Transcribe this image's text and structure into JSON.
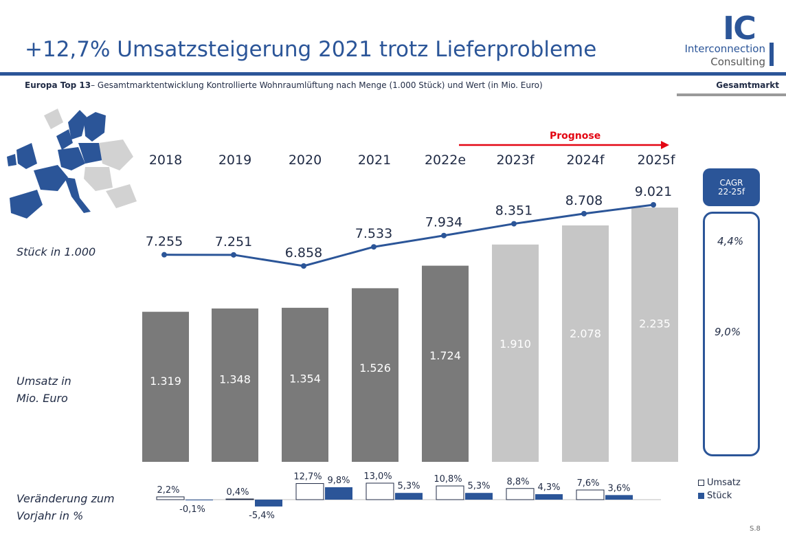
{
  "header": {
    "title": "+12,7% Umsatzsteigerung 2021 trotz Lieferprobleme",
    "subtitle_bold": "Europa Top 13",
    "subtitle_rest": "– Gesamtmarktentwicklung Kontrollierte Wohnraumlüftung nach Menge (1.000 Stück) und Wert (in Mio. Euro)",
    "section": "Gesamtmarkt"
  },
  "logo": {
    "mark": "IC",
    "line1": "Interconnection",
    "line2": "Consulting"
  },
  "row_labels": {
    "stueck": "Stück in 1.000",
    "umsatz_1": "Umsatz in",
    "umsatz_2": "Mio. Euro",
    "change_1": "Veränderung zum",
    "change_2": "Vorjahr in %"
  },
  "prognose_label": "Prognose",
  "cagr": {
    "head_1": "CAGR",
    "head_2": "22-25f",
    "stueck": "4,4%",
    "umsatz": "9,0%"
  },
  "legend": {
    "umsatz": "Umsatz",
    "stueck": "Stück"
  },
  "page_number": "S.8",
  "colors": {
    "brand_blue": "#2b5598",
    "bar_actual": "#7a7a7a",
    "bar_forecast": "#c6c6c6",
    "prognose_red": "#e30613"
  },
  "chart_data": {
    "type": "bar",
    "categories": [
      "2018",
      "2019",
      "2020",
      "2021",
      "2022e",
      "2023f",
      "2024f",
      "2025f"
    ],
    "forecast_from_index": 5,
    "series": [
      {
        "name": "Umsatz",
        "type": "bar",
        "values": [
          1319,
          1348,
          1354,
          1526,
          1724,
          1910,
          2078,
          2235
        ],
        "labels": [
          "1.319",
          "1.348",
          "1.354",
          "1.526",
          "1.724",
          "1.910",
          "2.078",
          "2.235"
        ]
      },
      {
        "name": "Stück",
        "type": "line",
        "values": [
          7255,
          7251,
          6858,
          7533,
          7934,
          8351,
          8708,
          9021
        ],
        "labels": [
          "7.255",
          "7.251",
          "6.858",
          "7.533",
          "7.934",
          "8.351",
          "8.708",
          "9.021"
        ]
      }
    ],
    "change": {
      "umsatz": {
        "values": [
          2.2,
          0.4,
          12.7,
          13.0,
          10.8,
          8.8,
          7.6
        ],
        "labels": [
          "2,2%",
          "0,4%",
          "12,7%",
          "13,0%",
          "10,8%",
          "8,8%",
          "7,6%"
        ]
      },
      "stueck": {
        "values": [
          -0.1,
          -5.4,
          9.8,
          5.3,
          5.3,
          4.3,
          3.6
        ],
        "labels": [
          "-0,1%",
          "-5,4%",
          "9,8%",
          "5,3%",
          "5,3%",
          "4,3%",
          "3,6%"
        ]
      }
    }
  }
}
